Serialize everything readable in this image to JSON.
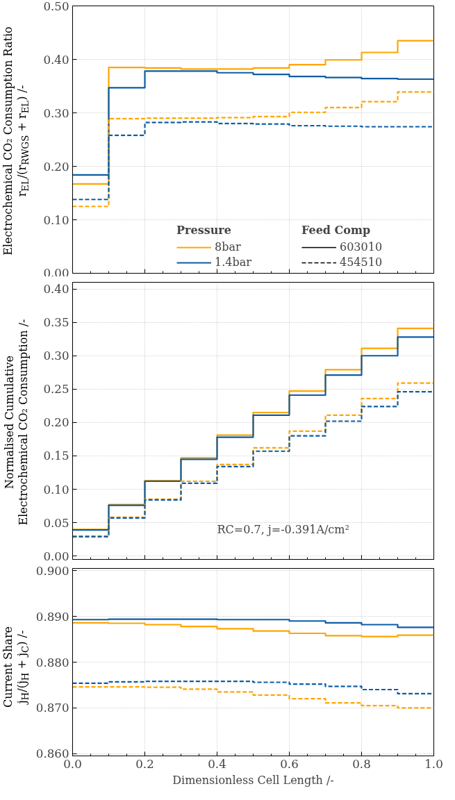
{
  "chart_data": [
    {
      "type": "step",
      "ylabel": "Electrochemical CO₂ Consumption Ratio\nr$_{EL}$/(r$_{RWGS}$ + r$_{EL}$) /-",
      "x": [
        0,
        0.1,
        0.2,
        0.3,
        0.4,
        0.5,
        0.6,
        0.7,
        0.8,
        0.9,
        1.0
      ],
      "xlim": [
        0,
        1
      ],
      "xticks": [
        0,
        0.2,
        0.4,
        0.6,
        0.8,
        1.0
      ],
      "ylim": [
        0,
        0.5
      ],
      "yticks": [
        {
          "value": 0,
          "label": "0.00"
        },
        {
          "value": 0.1,
          "label": "0.10"
        },
        {
          "value": 0.2,
          "label": "0.20"
        },
        {
          "value": 0.3,
          "label": "0.30"
        },
        {
          "value": 0.4,
          "label": "0.40"
        },
        {
          "value": 0.5,
          "label": "0.50"
        }
      ],
      "grid": true,
      "tick_labels": "y",
      "legend": "bottom",
      "legend_title": "Pressure",
      "annotations": [
        "Feed Comp",
        "603010",
        "454510"
      ],
      "series": [
        {
          "name": "8bar",
          "color": "#ffa500",
          "line_style": "solid",
          "values": [
            0.167,
            0.385,
            0.384,
            0.382,
            0.382,
            0.384,
            0.39,
            0.399,
            0.413,
            0.435,
            0.435
          ]
        },
        {
          "name": "1.4bar",
          "color": "#0c5da5",
          "line_style": "solid",
          "values": [
            0.184,
            0.347,
            0.378,
            0.378,
            0.375,
            0.372,
            0.368,
            0.366,
            0.364,
            0.363,
            0.363
          ]
        },
        {
          "color": "#ffa500",
          "line_style": "dashed",
          "values": [
            0.125,
            0.289,
            0.29,
            0.29,
            0.291,
            0.293,
            0.301,
            0.31,
            0.321,
            0.339,
            0.339
          ]
        },
        {
          "color": "#0c5da5",
          "line_style": "dashed",
          "values": [
            0.138,
            0.258,
            0.282,
            0.283,
            0.28,
            0.279,
            0.276,
            0.275,
            0.274,
            0.274,
            0.274
          ]
        }
      ]
    },
    {
      "type": "step",
      "ylabel": "Normalised Cumulative\nElectrochemical CO₂ Consumption /-",
      "x": [
        0,
        0.1,
        0.2,
        0.3,
        0.4,
        0.5,
        0.6,
        0.7,
        0.8,
        0.9,
        1.0
      ],
      "xlim": [
        0,
        1
      ],
      "xticks": [
        0,
        0.2,
        0.4,
        0.6,
        0.8,
        1.0
      ],
      "ylim": [
        -0.005,
        0.41
      ],
      "yticks": [
        {
          "value": 0,
          "label": "0.00"
        },
        {
          "value": 0.05,
          "label": "0.05"
        },
        {
          "value": 0.1,
          "label": "0.10"
        },
        {
          "value": 0.15,
          "label": "0.15"
        },
        {
          "value": 0.2,
          "label": "0.20"
        },
        {
          "value": 0.25,
          "label": "0.25"
        },
        {
          "value": 0.3,
          "label": "0.30"
        },
        {
          "value": 0.35,
          "label": "0.35"
        },
        {
          "value": 0.4,
          "label": "0.40"
        }
      ],
      "grid": true,
      "tick_labels": "y",
      "annotations": [
        "RC=0.7, j=-0.391A/cm²"
      ],
      "series": [
        {
          "color": "#ffa500",
          "line_style": "solid",
          "values": [
            0.04,
            0.077,
            0.113,
            0.147,
            0.181,
            0.215,
            0.247,
            0.279,
            0.311,
            0.341,
            0.341
          ]
        },
        {
          "color": "#0c5da5",
          "line_style": "solid",
          "values": [
            0.039,
            0.076,
            0.112,
            0.145,
            0.178,
            0.211,
            0.241,
            0.271,
            0.3,
            0.328,
            0.328
          ]
        },
        {
          "color": "#ffa500",
          "line_style": "dashed",
          "values": [
            0.03,
            0.058,
            0.085,
            0.112,
            0.137,
            0.162,
            0.187,
            0.211,
            0.236,
            0.259,
            0.259
          ]
        },
        {
          "color": "#0c5da5",
          "line_style": "dashed",
          "values": [
            0.029,
            0.057,
            0.084,
            0.109,
            0.134,
            0.157,
            0.18,
            0.202,
            0.224,
            0.246,
            0.246
          ]
        }
      ]
    },
    {
      "type": "step",
      "xlabel": "Dimensionless Cell Length /-",
      "ylabel": "Current Share\nj$_{H}$/(j$_{H}$ + j$_{C}$) /-",
      "x": [
        0,
        0.1,
        0.2,
        0.3,
        0.4,
        0.5,
        0.6,
        0.7,
        0.8,
        0.9,
        1.0
      ],
      "xlim": [
        0,
        1
      ],
      "xticks": [
        {
          "value": 0,
          "label": "0.0"
        },
        0.2,
        0.4,
        0.6,
        0.8,
        {
          "value": 1.0,
          "label": "1.0"
        }
      ],
      "ylim": [
        0.8595,
        0.9005
      ],
      "yticks": [
        {
          "value": 0.86,
          "label": "0.860"
        },
        {
          "value": 0.87,
          "label": "0.870"
        },
        {
          "value": 0.88,
          "label": "0.880"
        },
        {
          "value": 0.89,
          "label": "0.890"
        },
        {
          "value": 0.9,
          "label": "0.900"
        }
      ],
      "grid": true,
      "series": [
        {
          "color": "#0c5da5",
          "line_style": "solid",
          "values": [
            0.8893,
            0.8894,
            0.8894,
            0.8894,
            0.8893,
            0.8893,
            0.889,
            0.8886,
            0.8882,
            0.8876,
            0.8876
          ]
        },
        {
          "color": "#ffa500",
          "line_style": "solid",
          "values": [
            0.8886,
            0.8885,
            0.8882,
            0.8878,
            0.8873,
            0.8868,
            0.8863,
            0.8858,
            0.8856,
            0.8859,
            0.8859
          ]
        },
        {
          "color": "#0c5da5",
          "line_style": "dashed",
          "values": [
            0.8754,
            0.8757,
            0.8758,
            0.8758,
            0.8758,
            0.8756,
            0.8752,
            0.8747,
            0.874,
            0.8731,
            0.8731
          ]
        },
        {
          "color": "#ffa500",
          "line_style": "dashed",
          "values": [
            0.8746,
            0.8746,
            0.8745,
            0.8741,
            0.8735,
            0.8728,
            0.872,
            0.8711,
            0.8705,
            0.87,
            0.87
          ]
        }
      ]
    }
  ]
}
